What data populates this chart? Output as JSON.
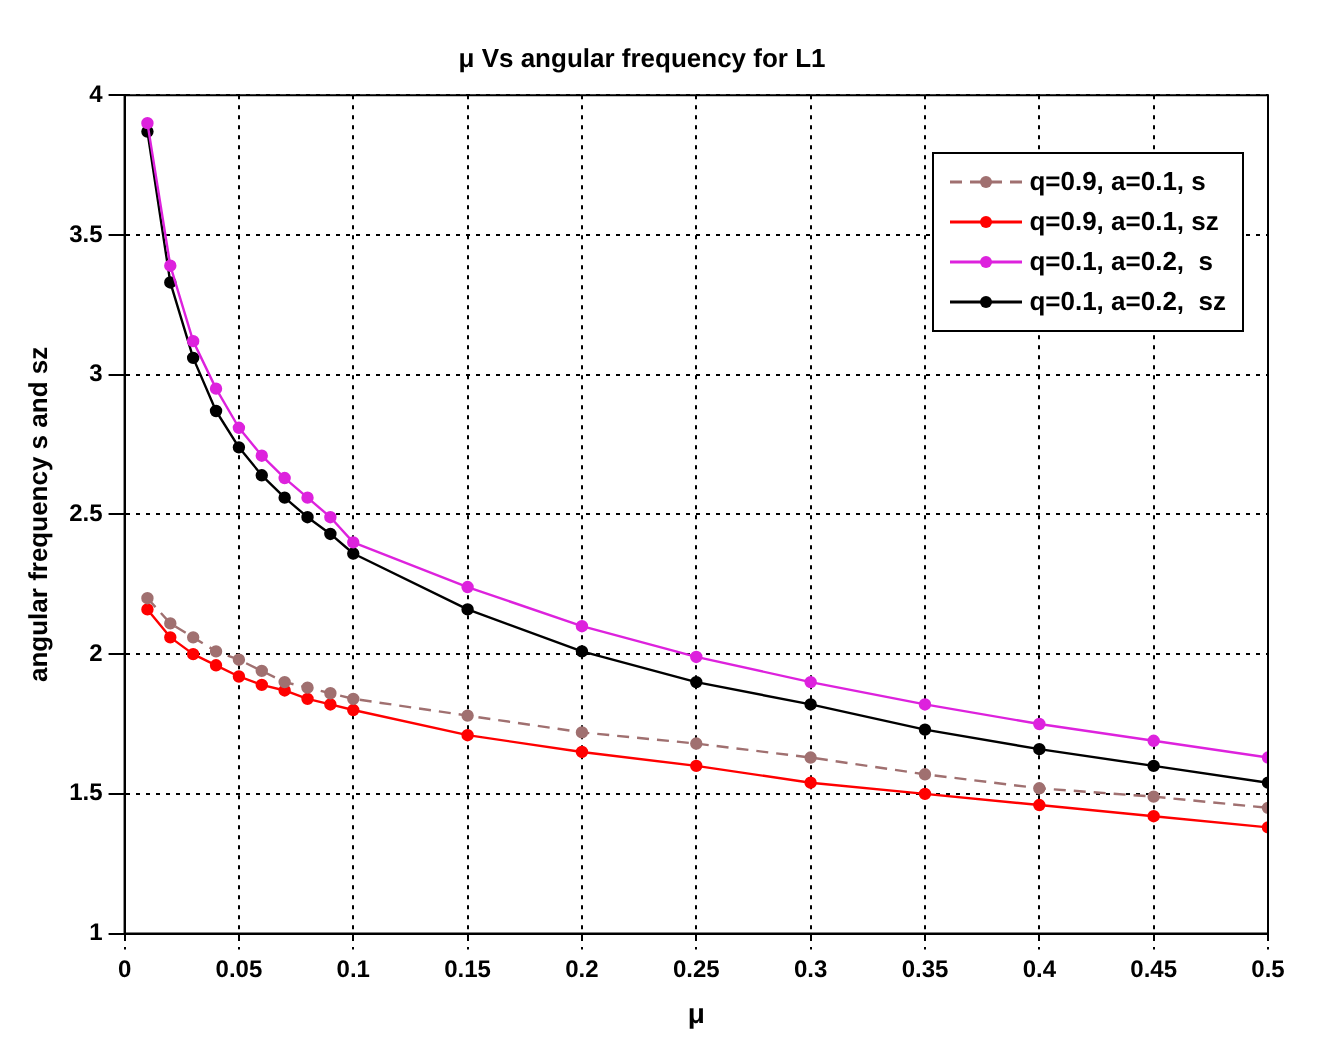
{
  "chart_data": {
    "type": "line",
    "title": "μ Vs angular frequency for L1",
    "xlabel": "μ",
    "ylabel": "angular frequency s and sz",
    "x": [
      0.01,
      0.02,
      0.03,
      0.04,
      0.05,
      0.06,
      0.07,
      0.08,
      0.09,
      0.1,
      0.15,
      0.2,
      0.25,
      0.3,
      0.35,
      0.4,
      0.45,
      0.5
    ],
    "series": [
      {
        "name": "q=0.9, a=0.1, s",
        "color": "#a07070",
        "line_style": "dashed",
        "values": [
          2.2,
          2.11,
          2.06,
          2.01,
          1.98,
          1.94,
          1.9,
          1.88,
          1.86,
          1.84,
          1.78,
          1.72,
          1.68,
          1.63,
          1.57,
          1.52,
          1.49,
          1.45
        ]
      },
      {
        "name": "q=0.9, a=0.1, sz",
        "color": "#ff0000",
        "line_style": "solid",
        "values": [
          2.16,
          2.06,
          2.0,
          1.96,
          1.92,
          1.89,
          1.87,
          1.84,
          1.82,
          1.8,
          1.71,
          1.65,
          1.6,
          1.54,
          1.5,
          1.46,
          1.42,
          1.38
        ]
      },
      {
        "name": "q=0.1, a=0.2,  s",
        "color": "#dd22dd",
        "line_style": "solid",
        "values": [
          3.9,
          3.39,
          3.12,
          2.95,
          2.81,
          2.71,
          2.63,
          2.56,
          2.49,
          2.4,
          2.24,
          2.1,
          1.99,
          1.9,
          1.82,
          1.75,
          1.69,
          1.63
        ]
      },
      {
        "name": "q=0.1, a=0.2,  sz",
        "color": "#000000",
        "line_style": "solid",
        "values": [
          3.87,
          3.33,
          3.06,
          2.87,
          2.74,
          2.64,
          2.56,
          2.49,
          2.43,
          2.36,
          2.16,
          2.01,
          1.9,
          1.82,
          1.73,
          1.66,
          1.6,
          1.54
        ]
      }
    ],
    "xlim": [
      0,
      0.5
    ],
    "xticks": [
      0,
      0.05,
      0.1,
      0.15,
      0.2,
      0.25,
      0.3,
      0.35,
      0.4,
      0.45,
      0.5
    ],
    "ylim": [
      1,
      4
    ],
    "yticks": [
      1,
      1.5,
      2,
      2.5,
      3,
      3.5,
      4
    ],
    "grid": true,
    "legend": "top right",
    "marker": "circle"
  }
}
